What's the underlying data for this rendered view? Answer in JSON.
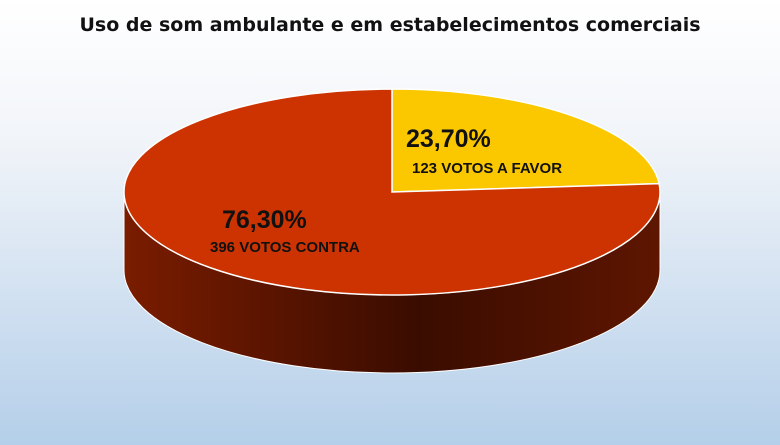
{
  "chart_data": {
    "type": "pie",
    "title": "Uso de som ambulante e em estabelecimentos comerciais",
    "slices": [
      {
        "percent_label": "23,70%",
        "votes_label": "123 VOTOS A FAVOR",
        "value": 123,
        "percent": 23.7,
        "color": "#fbc800",
        "side_color": "#a88400"
      },
      {
        "percent_label": "76,30%",
        "votes_label": "396 VOTOS CONTRA",
        "value": 396,
        "percent": 76.3,
        "color": "#cc3300",
        "side_color": "#5a1400"
      }
    ],
    "legend": "none",
    "style": "3d"
  }
}
